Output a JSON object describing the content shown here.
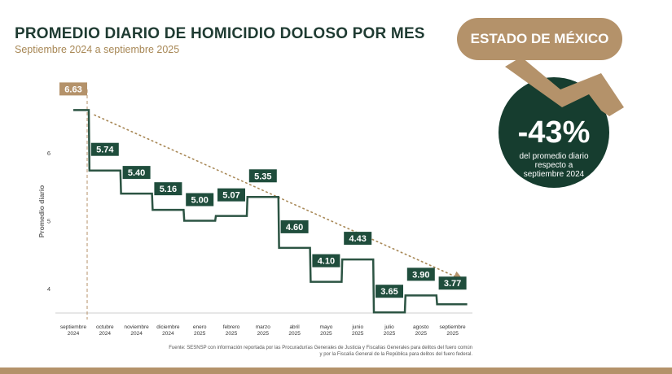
{
  "header": {
    "title": "PROMEDIO DIARIO DE HOMICIDIO DOLOSO POR MES",
    "subtitle": "Septiembre 2024 a septiembre 2025"
  },
  "badge": {
    "state_label": "ESTADO DE MÉXICO"
  },
  "kpi": {
    "value": "-43%",
    "caption_lines": [
      "del promedio diario",
      "respecto a",
      "septiembre 2024"
    ]
  },
  "source_lines": [
    "Fuente: SESNSP con información reportada por las Procuradurías Generales de Justicia y Fiscalías Generales para delitos del fuero común",
    "y por la Fiscalía General de la República para delitos del fuero federal."
  ],
  "colors": {
    "accent": "#b4926a",
    "line": "#2c5443",
    "label_bg": "#1f4d3c",
    "dark_circle": "#163d2f",
    "dotted": "#a88856"
  },
  "chart_data": {
    "type": "line",
    "step": true,
    "ylabel": "Promedio diario",
    "ylim": [
      3.6,
      6.75
    ],
    "yticks": [
      4,
      5,
      6
    ],
    "categories": [
      [
        "septiembre",
        "2024"
      ],
      [
        "octubre",
        "2024"
      ],
      [
        "noviembre",
        "2024"
      ],
      [
        "diciembre",
        "2024"
      ],
      [
        "enero",
        "2025"
      ],
      [
        "febrero",
        "2025"
      ],
      [
        "marzo",
        "2025"
      ],
      [
        "abril",
        "2025"
      ],
      [
        "mayo",
        "2025"
      ],
      [
        "junio",
        "2025"
      ],
      [
        "julio",
        "2025"
      ],
      [
        "agosto",
        "2025"
      ],
      [
        "septiembre",
        "2025"
      ]
    ],
    "values": [
      6.63,
      5.74,
      5.4,
      5.16,
      5.0,
      5.07,
      5.35,
      4.6,
      4.1,
      4.43,
      3.65,
      3.9,
      3.77
    ],
    "data_labels": [
      "6.63",
      "5.74",
      "5.40",
      "5.16",
      "5.00",
      "5.07",
      "5.35",
      "4.60",
      "4.10",
      "4.43",
      "3.65",
      "3.90",
      "3.77"
    ],
    "trend": {
      "from": 6.63,
      "to": 3.77
    }
  }
}
